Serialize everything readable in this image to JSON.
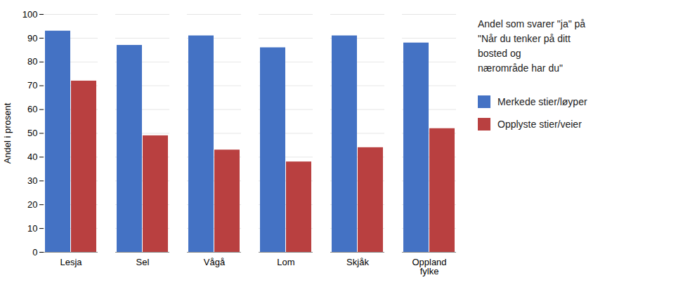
{
  "chart_data": {
    "type": "bar",
    "categories": [
      "Lesja",
      "Sel",
      "Vågå",
      "Lom",
      "Skjåk",
      "Oppland\nfylke"
    ],
    "series": [
      {
        "name": "Merkede stier/løyper",
        "color": "#4472C4",
        "values": [
          93,
          87,
          91,
          86,
          91,
          88
        ]
      },
      {
        "name": "Opplyste stier/veier",
        "color": "#B94040",
        "values": [
          72,
          49,
          43,
          38,
          44,
          52
        ]
      }
    ],
    "ylabel": "Andel i prosent",
    "ylim": [
      0,
      100
    ],
    "yticks": [
      0,
      10,
      20,
      30,
      40,
      50,
      60,
      70,
      80,
      90,
      100
    ],
    "grid": true,
    "legend": "right",
    "annotation": "Andel som svarer \"ja\"  på\n\"Når du tenker på ditt\nbosted og\nnærområde har du\""
  }
}
